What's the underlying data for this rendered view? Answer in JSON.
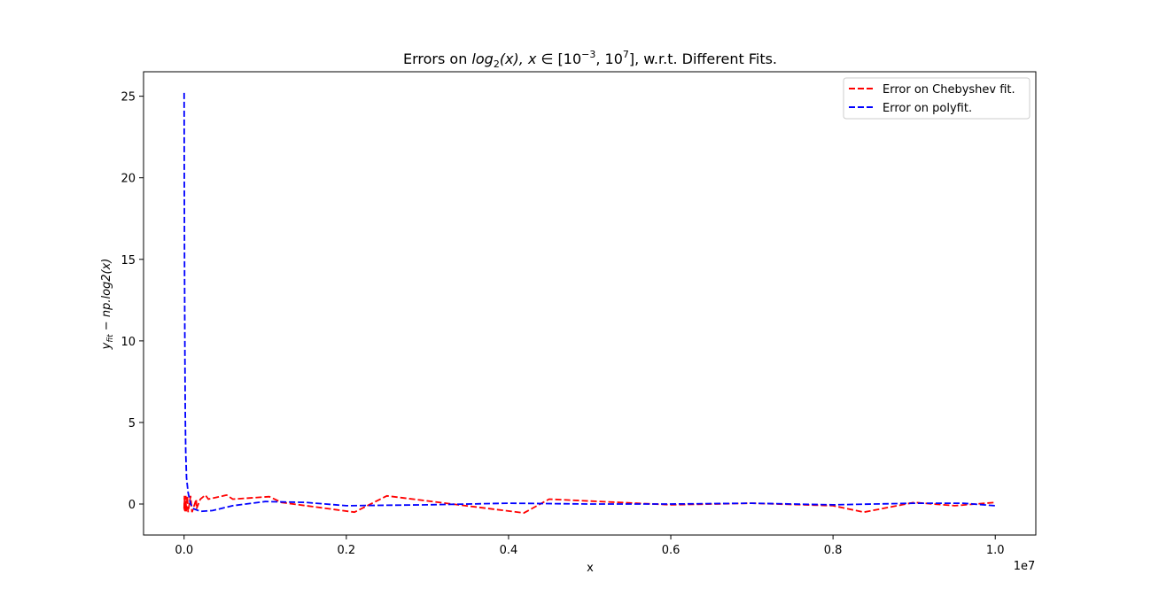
{
  "chart_data": {
    "type": "line",
    "title": {
      "prefix": "Errors on ",
      "func": "log",
      "func_sub": "2",
      "func_arg": "(x), ",
      "var": "x",
      "elem": " ∈ [10",
      "exp1": "−3",
      "mid": ", 10",
      "exp2": "7",
      "suffix": "], w.r.t. Different Fits."
    },
    "xlabel": "x",
    "ylabel": {
      "y": "y",
      "sub": "fit",
      "rest": " − np.log2(x)"
    },
    "x_offset_label": "1e7",
    "xlim": [
      -0.05,
      1.05
    ],
    "ylim": [
      -1.9,
      26.5
    ],
    "xticks": [
      0.0,
      0.2,
      0.4,
      0.6,
      0.8,
      1.0
    ],
    "xtick_labels": [
      "0.0",
      "0.2",
      "0.4",
      "0.6",
      "0.8",
      "1.0"
    ],
    "yticks": [
      0,
      5,
      10,
      15,
      20,
      25
    ],
    "ytick_labels": [
      "0",
      "5",
      "10",
      "15",
      "20",
      "25"
    ],
    "grid": false,
    "legend_position": "top-right",
    "series": [
      {
        "name": "Error on Chebyshev fit.",
        "color": "#ff0000",
        "style": "dashed",
        "x": [
          0.0,
          0.0005,
          0.0006,
          0.001,
          0.0012,
          0.002,
          0.0025,
          0.004,
          0.0049,
          0.008,
          0.0098,
          0.015,
          0.0152,
          0.02,
          0.0262,
          0.03,
          0.0525,
          0.06,
          0.105,
          0.12,
          0.21,
          0.25,
          0.419,
          0.45,
          0.6,
          0.7,
          0.8,
          0.838,
          0.9,
          0.95,
          1.0
        ],
        "values": [
          -0.3,
          0.5,
          -0.4,
          0.5,
          -0.45,
          0.5,
          -0.45,
          0.5,
          -0.5,
          0.5,
          -0.5,
          0.3,
          -0.3,
          0.3,
          0.55,
          0.3,
          0.55,
          0.3,
          0.45,
          0.1,
          -0.5,
          0.5,
          -0.55,
          0.3,
          -0.05,
          0.05,
          -0.1,
          -0.5,
          0.1,
          -0.1,
          0.1
        ]
      },
      {
        "name": "Error on polyfit.",
        "color": "#0000ff",
        "style": "dashed",
        "x": [
          0.0,
          0.0003,
          0.0006,
          0.001,
          0.0015,
          0.002,
          0.003,
          0.005,
          0.008,
          0.012,
          0.02,
          0.035,
          0.06,
          0.1,
          0.15,
          0.2,
          0.3,
          0.4,
          0.5,
          0.6,
          0.7,
          0.8,
          0.9,
          0.96,
          1.0
        ],
        "values": [
          25.2,
          20.0,
          14.0,
          9.0,
          5.5,
          3.2,
          1.6,
          0.7,
          0.0,
          -0.3,
          -0.45,
          -0.4,
          -0.1,
          0.15,
          0.1,
          -0.1,
          -0.05,
          0.05,
          0.0,
          0.0,
          0.05,
          -0.05,
          0.05,
          0.05,
          -0.1
        ]
      }
    ]
  }
}
